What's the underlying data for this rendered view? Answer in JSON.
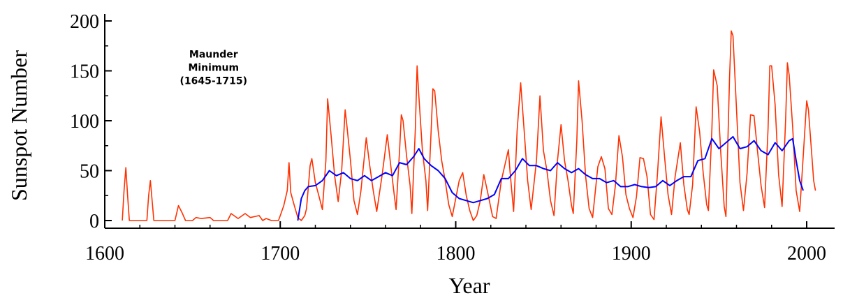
{
  "chart_data": {
    "type": "line",
    "xlabel": "Year",
    "ylabel": "Sunspot Number",
    "xlim": [
      1600,
      2010
    ],
    "ylim": [
      0,
      200
    ],
    "x_ticks": [
      1600,
      1700,
      1800,
      1900,
      2000
    ],
    "y_ticks": [
      0,
      50,
      100,
      150,
      200
    ],
    "grid": false,
    "annotation": {
      "lines": [
        "Maunder",
        "Minimum",
        "(1645-1715)"
      ],
      "x": 1662,
      "y": 148
    },
    "colors": {
      "raw": "#ff3000",
      "smoothed": "#0000ff",
      "axis": "#000000"
    },
    "series": [
      {
        "key": "raw",
        "points": [
          [
            1610,
            0
          ],
          [
            1611,
            30
          ],
          [
            1612,
            53
          ],
          [
            1613,
            25
          ],
          [
            1614,
            0
          ],
          [
            1624,
            0
          ],
          [
            1625,
            25
          ],
          [
            1626,
            40
          ],
          [
            1627,
            20
          ],
          [
            1628,
            0
          ],
          [
            1640,
            0
          ],
          [
            1642,
            15
          ],
          [
            1644,
            8
          ],
          [
            1646,
            0
          ],
          [
            1650,
            0
          ],
          [
            1652,
            3
          ],
          [
            1655,
            2
          ],
          [
            1660,
            3
          ],
          [
            1662,
            0
          ],
          [
            1670,
            0
          ],
          [
            1672,
            7
          ],
          [
            1676,
            2
          ],
          [
            1680,
            7
          ],
          [
            1683,
            3
          ],
          [
            1688,
            5
          ],
          [
            1690,
            0
          ],
          [
            1692,
            2
          ],
          [
            1695,
            0
          ],
          [
            1699,
            0
          ],
          [
            1700,
            5
          ],
          [
            1702,
            15
          ],
          [
            1704,
            30
          ],
          [
            1705,
            58
          ],
          [
            1706,
            28
          ],
          [
            1708,
            15
          ],
          [
            1710,
            3
          ],
          [
            1712,
            0
          ],
          [
            1714,
            5
          ],
          [
            1715,
            12
          ],
          [
            1717,
            55
          ],
          [
            1718,
            62
          ],
          [
            1720,
            38
          ],
          [
            1722,
            25
          ],
          [
            1724,
            11
          ],
          [
            1726,
            60
          ],
          [
            1727,
            122
          ],
          [
            1729,
            85
          ],
          [
            1731,
            45
          ],
          [
            1733,
            19
          ],
          [
            1735,
            50
          ],
          [
            1737,
            111
          ],
          [
            1738,
            95
          ],
          [
            1740,
            60
          ],
          [
            1742,
            20
          ],
          [
            1744,
            6
          ],
          [
            1746,
            30
          ],
          [
            1749,
            83
          ],
          [
            1751,
            55
          ],
          [
            1753,
            30
          ],
          [
            1755,
            9
          ],
          [
            1758,
            45
          ],
          [
            1761,
            86
          ],
          [
            1763,
            55
          ],
          [
            1765,
            25
          ],
          [
            1766,
            11
          ],
          [
            1768,
            70
          ],
          [
            1769,
            106
          ],
          [
            1770,
            100
          ],
          [
            1772,
            65
          ],
          [
            1774,
            35
          ],
          [
            1775,
            7
          ],
          [
            1777,
            92
          ],
          [
            1778,
            155
          ],
          [
            1779,
            125
          ],
          [
            1781,
            70
          ],
          [
            1783,
            40
          ],
          [
            1784,
            10
          ],
          [
            1786,
            90
          ],
          [
            1787,
            132
          ],
          [
            1788,
            130
          ],
          [
            1790,
            90
          ],
          [
            1792,
            60
          ],
          [
            1794,
            40
          ],
          [
            1796,
            16
          ],
          [
            1798,
            4
          ],
          [
            1802,
            40
          ],
          [
            1804,
            48
          ],
          [
            1806,
            25
          ],
          [
            1808,
            10
          ],
          [
            1810,
            0
          ],
          [
            1812,
            5
          ],
          [
            1814,
            20
          ],
          [
            1816,
            46
          ],
          [
            1818,
            30
          ],
          [
            1821,
            4
          ],
          [
            1823,
            2
          ],
          [
            1826,
            40
          ],
          [
            1830,
            71
          ],
          [
            1831,
            48
          ],
          [
            1833,
            9
          ],
          [
            1835,
            90
          ],
          [
            1837,
            138
          ],
          [
            1839,
            90
          ],
          [
            1841,
            40
          ],
          [
            1843,
            11
          ],
          [
            1846,
            60
          ],
          [
            1848,
            125
          ],
          [
            1850,
            70
          ],
          [
            1852,
            50
          ],
          [
            1854,
            20
          ],
          [
            1856,
            5
          ],
          [
            1858,
            60
          ],
          [
            1860,
            96
          ],
          [
            1862,
            60
          ],
          [
            1864,
            40
          ],
          [
            1866,
            15
          ],
          [
            1867,
            7
          ],
          [
            1869,
            80
          ],
          [
            1870,
            140
          ],
          [
            1872,
            100
          ],
          [
            1874,
            45
          ],
          [
            1876,
            12
          ],
          [
            1878,
            3
          ],
          [
            1881,
            54
          ],
          [
            1883,
            64
          ],
          [
            1885,
            52
          ],
          [
            1887,
            12
          ],
          [
            1889,
            6
          ],
          [
            1891,
            35
          ],
          [
            1893,
            85
          ],
          [
            1895,
            64
          ],
          [
            1897,
            26
          ],
          [
            1899,
            12
          ],
          [
            1901,
            3
          ],
          [
            1903,
            24
          ],
          [
            1905,
            63
          ],
          [
            1907,
            62
          ],
          [
            1909,
            44
          ],
          [
            1911,
            6
          ],
          [
            1913,
            1
          ],
          [
            1915,
            47
          ],
          [
            1917,
            104
          ],
          [
            1919,
            64
          ],
          [
            1921,
            26
          ],
          [
            1923,
            6
          ],
          [
            1925,
            44
          ],
          [
            1928,
            78
          ],
          [
            1930,
            36
          ],
          [
            1932,
            11
          ],
          [
            1933,
            6
          ],
          [
            1935,
            36
          ],
          [
            1937,
            114
          ],
          [
            1939,
            89
          ],
          [
            1941,
            48
          ],
          [
            1943,
            16
          ],
          [
            1944,
            10
          ],
          [
            1946,
            92
          ],
          [
            1947,
            151
          ],
          [
            1949,
            135
          ],
          [
            1951,
            69
          ],
          [
            1953,
            14
          ],
          [
            1954,
            4
          ],
          [
            1956,
            142
          ],
          [
            1957,
            190
          ],
          [
            1958,
            185
          ],
          [
            1960,
            112
          ],
          [
            1962,
            38
          ],
          [
            1964,
            10
          ],
          [
            1966,
            47
          ],
          [
            1968,
            106
          ],
          [
            1970,
            105
          ],
          [
            1972,
            69
          ],
          [
            1974,
            35
          ],
          [
            1976,
            13
          ],
          [
            1978,
            92
          ],
          [
            1979,
            155
          ],
          [
            1980,
            155
          ],
          [
            1982,
            116
          ],
          [
            1984,
            46
          ],
          [
            1986,
            14
          ],
          [
            1988,
            100
          ],
          [
            1989,
            158
          ],
          [
            1990,
            146
          ],
          [
            1992,
            94
          ],
          [
            1994,
            30
          ],
          [
            1996,
            9
          ],
          [
            1998,
            64
          ],
          [
            2000,
            120
          ],
          [
            2001,
            111
          ],
          [
            2003,
            64
          ],
          [
            2004,
            40
          ],
          [
            2005,
            30
          ]
        ]
      },
      {
        "key": "smoothed",
        "points": [
          [
            1710,
            0
          ],
          [
            1712,
            22
          ],
          [
            1714,
            30
          ],
          [
            1716,
            34
          ],
          [
            1720,
            35
          ],
          [
            1724,
            40
          ],
          [
            1728,
            50
          ],
          [
            1732,
            45
          ],
          [
            1736,
            48
          ],
          [
            1740,
            42
          ],
          [
            1744,
            40
          ],
          [
            1748,
            45
          ],
          [
            1752,
            40
          ],
          [
            1756,
            44
          ],
          [
            1760,
            48
          ],
          [
            1764,
            45
          ],
          [
            1768,
            58
          ],
          [
            1772,
            56
          ],
          [
            1776,
            64
          ],
          [
            1779,
            72
          ],
          [
            1782,
            62
          ],
          [
            1786,
            55
          ],
          [
            1790,
            50
          ],
          [
            1794,
            42
          ],
          [
            1798,
            28
          ],
          [
            1802,
            22
          ],
          [
            1806,
            20
          ],
          [
            1810,
            18
          ],
          [
            1814,
            20
          ],
          [
            1818,
            22
          ],
          [
            1822,
            26
          ],
          [
            1826,
            42
          ],
          [
            1830,
            42
          ],
          [
            1834,
            50
          ],
          [
            1838,
            62
          ],
          [
            1842,
            55
          ],
          [
            1846,
            55
          ],
          [
            1850,
            52
          ],
          [
            1854,
            50
          ],
          [
            1858,
            58
          ],
          [
            1862,
            52
          ],
          [
            1866,
            48
          ],
          [
            1870,
            52
          ],
          [
            1874,
            46
          ],
          [
            1878,
            42
          ],
          [
            1882,
            42
          ],
          [
            1886,
            38
          ],
          [
            1890,
            40
          ],
          [
            1894,
            34
          ],
          [
            1898,
            34
          ],
          [
            1902,
            36
          ],
          [
            1906,
            34
          ],
          [
            1910,
            33
          ],
          [
            1914,
            34
          ],
          [
            1918,
            40
          ],
          [
            1922,
            35
          ],
          [
            1926,
            40
          ],
          [
            1930,
            44
          ],
          [
            1934,
            44
          ],
          [
            1938,
            60
          ],
          [
            1942,
            62
          ],
          [
            1946,
            82
          ],
          [
            1950,
            72
          ],
          [
            1954,
            78
          ],
          [
            1958,
            84
          ],
          [
            1962,
            72
          ],
          [
            1966,
            74
          ],
          [
            1970,
            80
          ],
          [
            1974,
            70
          ],
          [
            1978,
            66
          ],
          [
            1982,
            78
          ],
          [
            1986,
            70
          ],
          [
            1990,
            80
          ],
          [
            1992,
            82
          ],
          [
            1994,
            60
          ],
          [
            1996,
            40
          ],
          [
            1998,
            30
          ]
        ]
      }
    ]
  }
}
